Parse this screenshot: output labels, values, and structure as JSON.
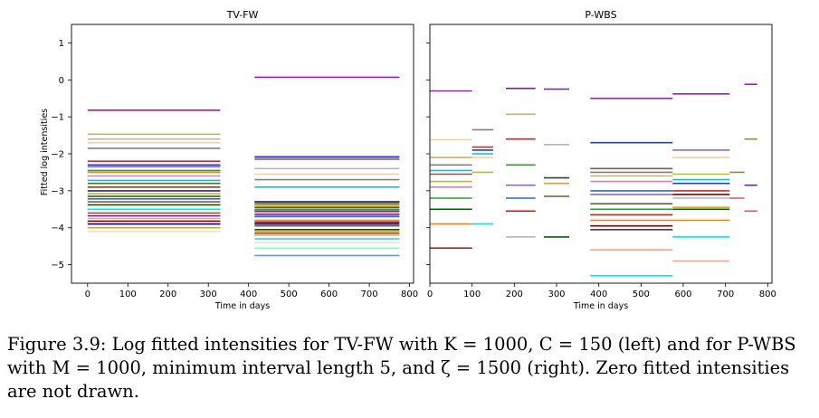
{
  "caption": "Figure 3.9: Log fitted intensities for TV-FW with K = 1000, C = 150 (left) and for P-WBS with M = 1000, minimum interval length 5, and ζ = 1500 (right). Zero fitted intensities are not drawn.",
  "chart_data": [
    {
      "type": "line",
      "title": "TV-FW",
      "xlabel": "Time in days",
      "ylabel": "Fitted log intensities",
      "xlim": [
        -40,
        810
      ],
      "ylim": [
        -5.5,
        1.5
      ],
      "xticks": [
        0,
        100,
        200,
        300,
        400,
        500,
        600,
        700,
        800
      ],
      "yticks": [
        1,
        0,
        -1,
        -2,
        -3,
        -4,
        -5
      ],
      "grid": false,
      "series": [
        {
          "color": "#9b1fb4",
          "segments": [
            [
              0,
              330,
              -0.82
            ],
            [
              415,
              775,
              0.07
            ]
          ]
        },
        {
          "color": "#c8b06a",
          "segments": [
            [
              0,
              330,
              -1.47
            ],
            [
              415,
              775,
              -2.12
            ]
          ]
        },
        {
          "color": "#b5b5b5",
          "segments": [
            [
              0,
              330,
              -1.6
            ],
            [
              415,
              775,
              -2.4
            ]
          ]
        },
        {
          "color": "#f5cda0",
          "segments": [
            [
              0,
              330,
              -1.7
            ],
            [
              415,
              775,
              -2.55
            ]
          ]
        },
        {
          "color": "#808080",
          "segments": [
            [
              0,
              330,
              -1.85
            ],
            [
              415,
              775,
              -2.7
            ]
          ]
        },
        {
          "color": "#d62728",
          "segments": [
            [
              0,
              330,
              -2.2
            ],
            [
              415,
              775,
              -3.3
            ]
          ]
        },
        {
          "color": "#1f3fd0",
          "segments": [
            [
              0,
              330,
              -2.3
            ],
            [
              415,
              775,
              -2.08
            ]
          ]
        },
        {
          "color": "#9467bd",
          "segments": [
            [
              0,
              330,
              -2.35
            ],
            [
              415,
              775,
              -2.15
            ]
          ]
        },
        {
          "color": "#2ca02c",
          "segments": [
            [
              0,
              330,
              -2.45
            ],
            [
              415,
              775,
              -3.5
            ]
          ]
        },
        {
          "color": "#ff7f0e",
          "segments": [
            [
              0,
              330,
              -2.5
            ],
            [
              415,
              775,
              -3.8
            ]
          ]
        },
        {
          "color": "#e377c2",
          "segments": [
            [
              0,
              330,
              -2.6
            ],
            [
              415,
              775,
              -3.6
            ]
          ]
        },
        {
          "color": "#17becf",
          "segments": [
            [
              0,
              330,
              -2.72
            ],
            [
              415,
              775,
              -2.9
            ]
          ]
        },
        {
          "color": "#556b2f",
          "segments": [
            [
              0,
              330,
              -2.8
            ],
            [
              415,
              775,
              -3.35
            ]
          ]
        },
        {
          "color": "#8b4513",
          "segments": [
            [
              0,
              330,
              -2.9
            ],
            [
              415,
              775,
              -3.45
            ]
          ]
        },
        {
          "color": "#2b2b6b",
          "segments": [
            [
              0,
              330,
              -3.0
            ],
            [
              415,
              775,
              -3.3
            ]
          ]
        },
        {
          "color": "#bcbd22",
          "segments": [
            [
              0,
              330,
              -3.08
            ],
            [
              415,
              775,
              -3.4
            ]
          ]
        },
        {
          "color": "#3d3d3d",
          "segments": [
            [
              0,
              330,
              -3.15
            ],
            [
              415,
              775,
              -3.55
            ]
          ]
        },
        {
          "color": "#1f77b4",
          "segments": [
            [
              0,
              330,
              -3.22
            ],
            [
              415,
              775,
              -3.7
            ]
          ]
        },
        {
          "color": "#8c564b",
          "segments": [
            [
              0,
              330,
              -3.3
            ],
            [
              415,
              775,
              -3.95
            ]
          ]
        },
        {
          "color": "#006400",
          "segments": [
            [
              0,
              330,
              -3.38
            ],
            [
              415,
              775,
              -4.05
            ]
          ]
        },
        {
          "color": "#00e5ee",
          "segments": [
            [
              0,
              330,
              -3.5
            ],
            [
              415,
              775,
              -4.3
            ]
          ]
        },
        {
          "color": "#a0522d",
          "segments": [
            [
              0,
              330,
              -3.6
            ],
            [
              415,
              775,
              -4.15
            ]
          ]
        },
        {
          "color": "#7b1fa2",
          "segments": [
            [
              0,
              330,
              -3.68
            ],
            [
              415,
              775,
              -3.65
            ]
          ]
        },
        {
          "color": "#f4a582",
          "segments": [
            [
              0,
              330,
              -3.75
            ],
            [
              415,
              775,
              -4.2
            ]
          ]
        },
        {
          "color": "#800000",
          "segments": [
            [
              0,
              330,
              -3.82
            ],
            [
              415,
              775,
              -3.85
            ]
          ]
        },
        {
          "color": "#000080",
          "segments": [
            [
              0,
              330,
              -3.9
            ],
            [
              415,
              775,
              -3.9
            ]
          ]
        },
        {
          "color": "#daa520",
          "segments": [
            [
              0,
              330,
              -4.0
            ],
            [
              415,
              775,
              -4.1
            ]
          ]
        },
        {
          "color": "#ffdead",
          "segments": [
            [
              0,
              330,
              -4.1
            ],
            [
              415,
              775,
              -4.4
            ]
          ]
        },
        {
          "color": "#7fffd4",
          "segments": [
            [
              415,
              775,
              -4.55
            ]
          ]
        },
        {
          "color": "#6495ed",
          "segments": [
            [
              415,
              775,
              -4.75
            ]
          ]
        }
      ]
    },
    {
      "type": "line",
      "title": "P-WBS",
      "xlabel": "Time in days",
      "ylabel": "",
      "xlim": [
        0,
        810
      ],
      "ylim": [
        -5.5,
        1.5
      ],
      "xticks": [
        0,
        100,
        200,
        300,
        400,
        500,
        600,
        700,
        800
      ],
      "yticks": [
        1,
        0,
        -1,
        -2,
        -3,
        -4,
        -5
      ],
      "grid": false,
      "series": [
        {
          "color": "#9b1fb4",
          "segments": [
            [
              0,
              100,
              -0.3
            ],
            [
              380,
              575,
              -0.5
            ],
            [
              575,
              710,
              -0.38
            ],
            [
              745,
              775,
              -0.12
            ]
          ]
        },
        {
          "color": "#f5cda0",
          "segments": [
            [
              0,
              100,
              -1.62
            ],
            [
              100,
              150,
              -2.1
            ],
            [
              575,
              710,
              -2.1
            ]
          ]
        },
        {
          "color": "#c8b06a",
          "segments": [
            [
              0,
              100,
              -2.1
            ],
            [
              180,
              250,
              -0.93
            ],
            [
              380,
              575,
              -2.6
            ]
          ]
        },
        {
          "color": "#808080",
          "segments": [
            [
              0,
              100,
              -2.3
            ],
            [
              100,
              150,
              -1.35
            ],
            [
              380,
              575,
              -2.5
            ]
          ]
        },
        {
          "color": "#17becf",
          "segments": [
            [
              0,
              100,
              -2.45
            ],
            [
              100,
              150,
              -2.0
            ],
            [
              575,
              710,
              -2.7
            ]
          ]
        },
        {
          "color": "#8c564b",
          "segments": [
            [
              0,
              100,
              -2.55
            ],
            [
              380,
              575,
              -2.4
            ]
          ]
        },
        {
          "color": "#bcbd22",
          "segments": [
            [
              0,
              100,
              -2.75
            ],
            [
              100,
              150,
              -2.5
            ],
            [
              575,
              710,
              -2.55
            ]
          ]
        },
        {
          "color": "#e377c2",
          "segments": [
            [
              0,
              100,
              -2.9
            ],
            [
              380,
              575,
              -2.75
            ]
          ]
        },
        {
          "color": "#2ca02c",
          "segments": [
            [
              0,
              100,
              -3.2
            ],
            [
              180,
              250,
              -2.3
            ],
            [
              380,
              575,
              -3.5
            ]
          ]
        },
        {
          "color": "#006400",
          "segments": [
            [
              0,
              100,
              -3.5
            ],
            [
              270,
              330,
              -4.25
            ],
            [
              575,
              710,
              -3.5
            ]
          ]
        },
        {
          "color": "#ff7f0e",
          "segments": [
            [
              0,
              100,
              -3.9
            ],
            [
              380,
              575,
              -3.8
            ],
            [
              575,
              710,
              -3.8
            ]
          ]
        },
        {
          "color": "#a52a2a",
          "segments": [
            [
              0,
              100,
              -4.55
            ],
            [
              180,
              250,
              -3.55
            ],
            [
              380,
              575,
              -3.65
            ]
          ]
        },
        {
          "color": "#d62728",
          "segments": [
            [
              100,
              150,
              -1.82
            ],
            [
              180,
              250,
              -1.6
            ],
            [
              575,
              710,
              -3.0
            ]
          ]
        },
        {
          "color": "#1f3fd0",
          "segments": [
            [
              100,
              150,
              -1.9
            ],
            [
              380,
              575,
              -1.7
            ],
            [
              575,
              710,
              -2.8
            ]
          ]
        },
        {
          "color": "#00e5ee",
          "segments": [
            [
              100,
              150,
              -3.9
            ],
            [
              380,
              575,
              -5.3
            ],
            [
              575,
              710,
              -4.25
            ]
          ]
        },
        {
          "color": "#1f77b4",
          "segments": [
            [
              180,
              250,
              -3.2
            ],
            [
              380,
              575,
              -3.0
            ]
          ]
        },
        {
          "color": "#9467bd",
          "segments": [
            [
              180,
              250,
              -2.85
            ],
            [
              380,
              575,
              -3.1
            ],
            [
              575,
              710,
              -1.9
            ]
          ]
        },
        {
          "color": "#b5b5b5",
          "segments": [
            [
              180,
              250,
              -4.25
            ],
            [
              270,
              330,
              -1.75
            ],
            [
              575,
              710,
              -3.2
            ]
          ]
        },
        {
          "color": "#f4a582",
          "segments": [
            [
              380,
              575,
              -4.6
            ],
            [
              575,
              710,
              -4.9
            ]
          ]
        },
        {
          "color": "#800000",
          "segments": [
            [
              380,
              575,
              -3.95
            ],
            [
              575,
              710,
              -3.1
            ]
          ]
        },
        {
          "color": "#556b2f",
          "segments": [
            [
              270,
              330,
              -3.15
            ],
            [
              380,
              575,
              -3.35
            ]
          ]
        },
        {
          "color": "#daa520",
          "segments": [
            [
              270,
              330,
              -2.8
            ],
            [
              575,
              710,
              -3.45
            ]
          ]
        },
        {
          "color": "#7b1fa2",
          "segments": [
            [
              180,
              250,
              -0.23
            ],
            [
              270,
              330,
              -0.25
            ],
            [
              745,
              775,
              -2.85
            ]
          ]
        },
        {
          "color": "#3d3d3d",
          "segments": [
            [
              270,
              330,
              -2.65
            ],
            [
              380,
              575,
              -4.05
            ]
          ]
        },
        {
          "color": "#8b8b3c",
          "segments": [
            [
              745,
              775,
              -1.6
            ],
            [
              710,
              745,
              -2.5
            ]
          ]
        },
        {
          "color": "#cd5c5c",
          "segments": [
            [
              745,
              775,
              -3.55
            ],
            [
              710,
              745,
              -3.2
            ]
          ]
        }
      ]
    }
  ]
}
